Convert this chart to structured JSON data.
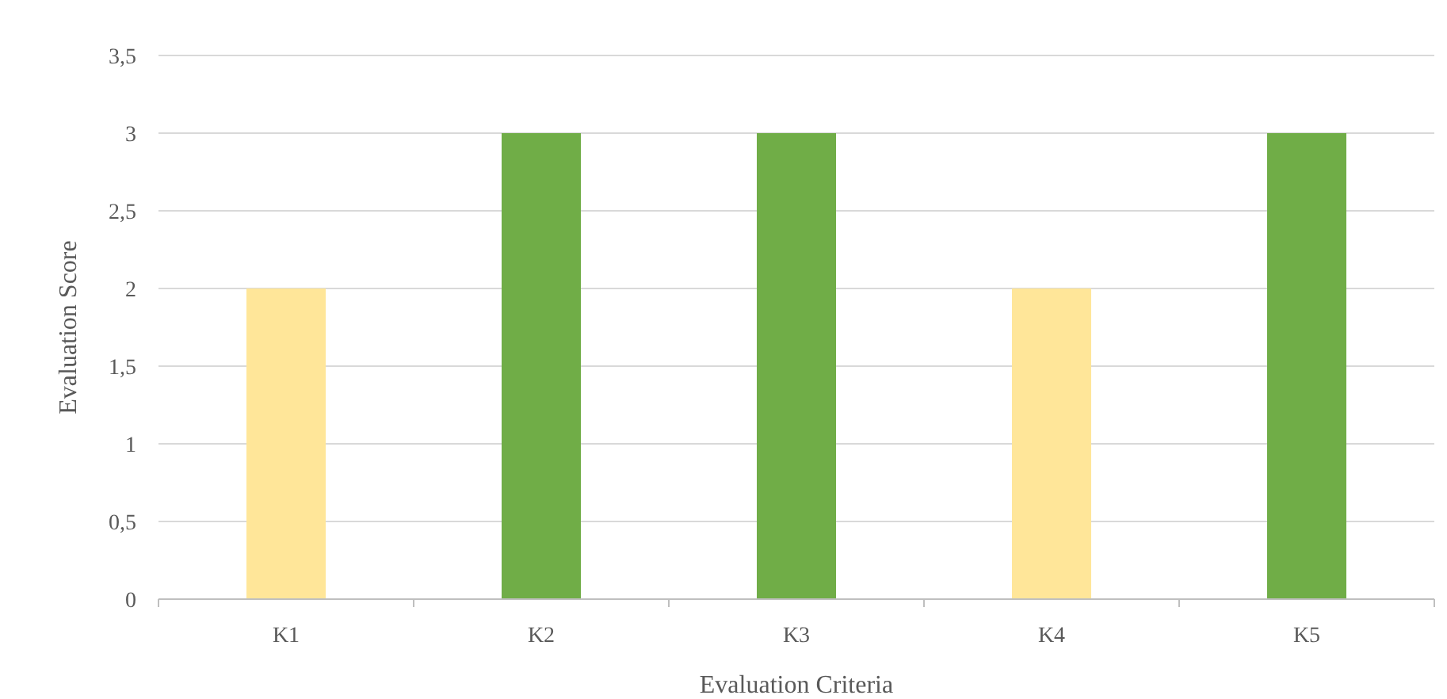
{
  "chart_data": {
    "type": "bar",
    "xlabel": "Evaluation Criteria",
    "ylabel": "Evaluation Score",
    "categories": [
      "K1",
      "K2",
      "K3",
      "K4",
      "K5"
    ],
    "values": [
      2,
      3,
      3,
      2,
      3
    ],
    "colors": [
      "#ffe699",
      "#70ad47",
      "#70ad47",
      "#ffe699",
      "#70ad47"
    ],
    "ylim": [
      0,
      3.5
    ],
    "yticks": [
      0,
      {
        "value": 0.5,
        "label": "0,5"
      },
      1,
      {
        "value": 1.5,
        "label": "1,5"
      },
      2,
      {
        "value": 2.5,
        "label": "2,5"
      },
      3,
      {
        "value": 3.5,
        "label": "3,5"
      }
    ],
    "grid": "y"
  }
}
